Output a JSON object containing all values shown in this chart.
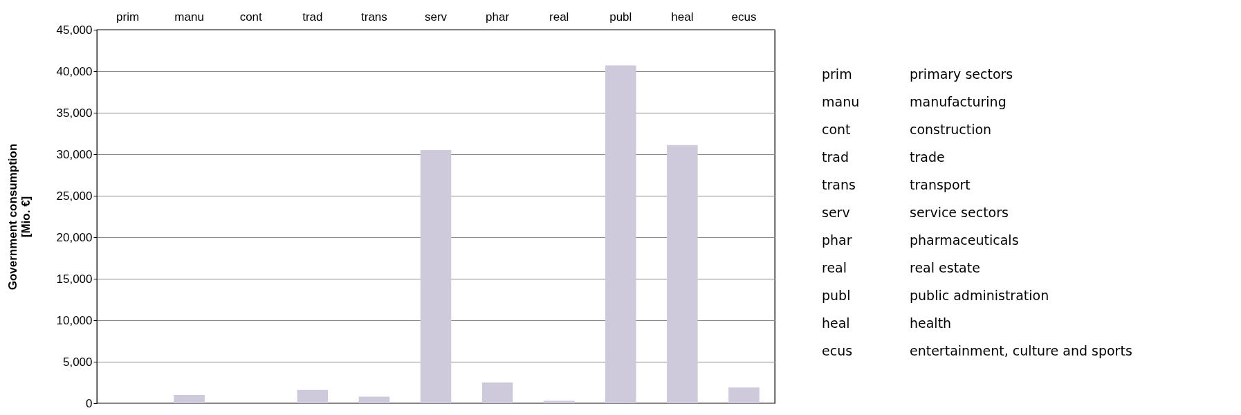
{
  "chart_data": {
    "type": "bar",
    "ylabel": "Government consumption\n[Mio. €]",
    "categories": [
      "prim",
      "manu",
      "cont",
      "trad",
      "trans",
      "serv",
      "phar",
      "real",
      "publ",
      "heal",
      "ecus"
    ],
    "values": [
      0,
      1000,
      0,
      1600,
      800,
      30500,
      2500,
      300,
      40700,
      31100,
      1900
    ],
    "color": "#cfc9dc",
    "ylim": [
      0,
      45000
    ],
    "yticks": [
      0,
      {
        "value": 5000,
        "label": "5,000"
      },
      {
        "value": 10000,
        "label": "10,000"
      },
      {
        "value": 15000,
        "label": "15,000"
      },
      {
        "value": 20000,
        "label": "20,000"
      },
      {
        "value": 25000,
        "label": "25,000"
      },
      {
        "value": 30000,
        "label": "30,000"
      },
      {
        "value": 35000,
        "label": "35,000"
      },
      {
        "value": 40000,
        "label": "40,000"
      },
      {
        "value": 45000,
        "label": "45,000"
      }
    ],
    "grid": "y",
    "annotations": [
      "prim",
      "primary sectors",
      "manu",
      "manufacturing",
      "cont",
      "construction",
      "trad",
      "trade",
      "trans",
      "transport",
      "serv",
      "service sectors",
      "phar",
      "pharmaceuticals",
      "real",
      "real estate",
      "publ",
      "public administration",
      "heal",
      "health",
      "ecus",
      "entertainment, culture and sports"
    ]
  }
}
